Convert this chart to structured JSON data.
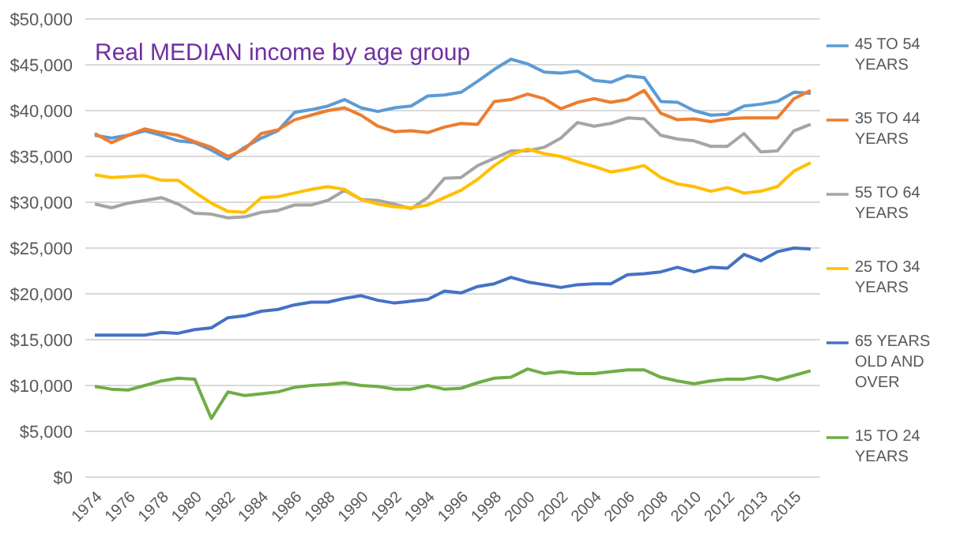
{
  "chart_data": {
    "type": "line",
    "title": "Real MEDIAN income by age group",
    "categories": [
      "1974",
      null,
      "1976",
      null,
      "1978",
      null,
      "1980",
      null,
      "1982",
      null,
      "1984",
      null,
      "1986",
      null,
      "1988",
      null,
      "1990",
      null,
      "1992",
      null,
      "1994",
      null,
      "1996",
      null,
      "1998",
      null,
      "2000",
      null,
      "2002",
      null,
      "2004",
      null,
      "2006",
      null,
      "2008",
      null,
      "2010",
      null,
      "2012",
      null,
      "2013",
      null,
      "2015",
      null
    ],
    "series": [
      {
        "name": "45 TO 54 YEARS",
        "color": "#5b9bd5",
        "values": [
          37300,
          37000,
          37300,
          37800,
          37300,
          36700,
          36500,
          35700,
          34700,
          36000,
          37000,
          37800,
          39800,
          40100,
          40500,
          41200,
          40300,
          39900,
          40300,
          40500,
          41600,
          41700,
          42000,
          43200,
          44500,
          45600,
          45100,
          44200,
          44100,
          44300,
          43300,
          43100,
          43800,
          43600,
          41000,
          40900,
          40000,
          39500,
          39600,
          40500,
          40700,
          41000,
          42000,
          41900
        ]
      },
      {
        "name": "35 TO 44 YEARS",
        "color": "#ed7d31",
        "values": [
          37500,
          36500,
          37300,
          38000,
          37600,
          37300,
          36600,
          36000,
          35000,
          35800,
          37500,
          37900,
          39000,
          39500,
          40000,
          40300,
          39500,
          38300,
          37700,
          37800,
          37600,
          38200,
          38600,
          38500,
          41000,
          41200,
          41800,
          41300,
          40200,
          40900,
          41300,
          40900,
          41200,
          42200,
          39700,
          39000,
          39100,
          38800,
          39100,
          39200,
          39200,
          39200,
          41300,
          42200
        ]
      },
      {
        "name": "55 TO 64 YEARS",
        "color": "#a5a5a5",
        "values": [
          29800,
          29400,
          29900,
          30200,
          30500,
          29800,
          28800,
          28700,
          28300,
          28400,
          28900,
          29100,
          29700,
          29700,
          30200,
          31300,
          30300,
          30200,
          29800,
          29300,
          30500,
          32600,
          32700,
          34000,
          34800,
          35600,
          35600,
          36000,
          37000,
          38700,
          38300,
          38600,
          39200,
          39100,
          37300,
          36900,
          36700,
          36100,
          36100,
          37500,
          35500,
          35600,
          37800,
          38500
        ]
      },
      {
        "name": "25 TO 34 YEARS",
        "color": "#ffc000",
        "values": [
          33000,
          32700,
          32800,
          32900,
          32400,
          32400,
          31100,
          29900,
          29000,
          28900,
          30500,
          30600,
          31000,
          31400,
          31700,
          31400,
          30300,
          29800,
          29500,
          29400,
          29700,
          30500,
          31300,
          32500,
          34000,
          35200,
          35800,
          35300,
          35000,
          34400,
          33900,
          33300,
          33600,
          34000,
          32700,
          32000,
          31700,
          31200,
          31600,
          31000,
          31200,
          31700,
          33400,
          34300
        ]
      },
      {
        "name": "65 YEARS OLD AND OVER",
        "color": "#4472c4",
        "values": [
          15500,
          15500,
          15500,
          15500,
          15800,
          15700,
          16100,
          16300,
          17400,
          17600,
          18100,
          18300,
          18800,
          19100,
          19100,
          19500,
          19800,
          19300,
          19000,
          19200,
          19400,
          20300,
          20100,
          20800,
          21100,
          21800,
          21300,
          21000,
          20700,
          21000,
          21100,
          21100,
          22100,
          22200,
          22400,
          22900,
          22400,
          22900,
          22800,
          24300,
          23600,
          24600,
          25000,
          24900
        ]
      },
      {
        "name": "15 TO 24 YEARS",
        "color": "#70ad47",
        "values": [
          9900,
          9600,
          9500,
          10000,
          10500,
          10800,
          10700,
          6400,
          9300,
          8900,
          9100,
          9300,
          9800,
          10000,
          10100,
          10300,
          10000,
          9900,
          9600,
          9600,
          10000,
          9600,
          9700,
          10300,
          10800,
          10900,
          11800,
          11300,
          11500,
          11300,
          11300,
          11500,
          11700,
          11700,
          10900,
          10500,
          10200,
          10500,
          10700,
          10700,
          11000,
          10600,
          11100,
          11600
        ]
      }
    ],
    "ylim": [
      0,
      50000
    ],
    "yticks": [
      {
        "value": 0,
        "label": "$0"
      },
      {
        "value": 5000,
        "label": "$5,000"
      },
      {
        "value": 10000,
        "label": "$10,000"
      },
      {
        "value": 15000,
        "label": "$15,000"
      },
      {
        "value": 20000,
        "label": "$20,000"
      },
      {
        "value": 25000,
        "label": "$25,000"
      },
      {
        "value": 30000,
        "label": "$30,000"
      },
      {
        "value": 35000,
        "label": "$35,000"
      },
      {
        "value": 40000,
        "label": "$40,000"
      },
      {
        "value": 45000,
        "label": "$45,000"
      },
      {
        "value": 50000,
        "label": "$50,000"
      }
    ],
    "grid": "y",
    "legend": "right",
    "marker": "none",
    "line_style": "solid"
  }
}
